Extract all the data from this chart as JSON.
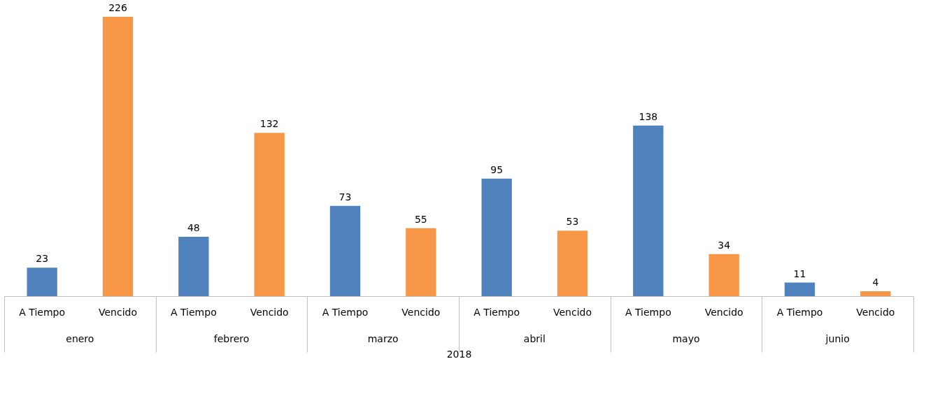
{
  "chart_data": {
    "type": "bar",
    "xlabel": "2018",
    "categories": [
      "enero",
      "febrero",
      "marzo",
      "abril",
      "mayo",
      "junio"
    ],
    "series": [
      {
        "name": "A Tiempo",
        "color": "#4f81bd",
        "values": [
          23,
          48,
          73,
          95,
          138,
          11
        ]
      },
      {
        "name": "Vencido",
        "color": "#f79646",
        "values": [
          226,
          132,
          55,
          53,
          34,
          4
        ]
      }
    ],
    "data_labels": true,
    "legend": false
  }
}
